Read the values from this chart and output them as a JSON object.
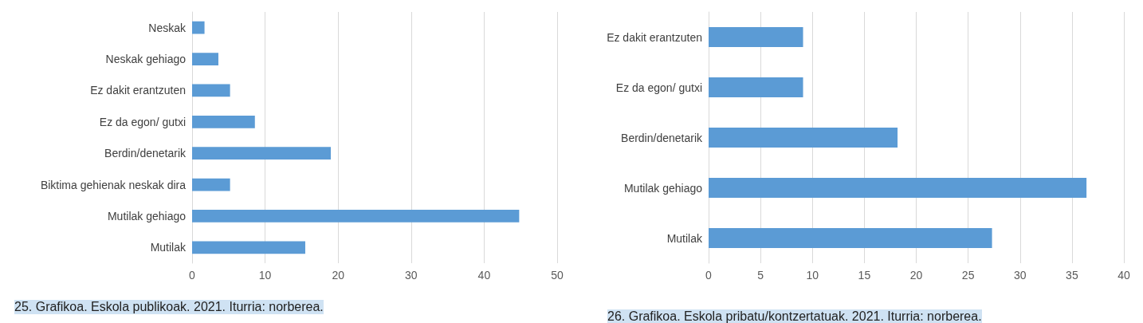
{
  "chart_data": [
    {
      "type": "bar",
      "orientation": "horizontal",
      "categories": [
        "Neskak",
        "Neskak gehiago",
        "Ez dakit erantzuten",
        "Ez da egon/ gutxi",
        "Berdin/denetarik",
        "Biktima gehienak neskak dira",
        "Mutilak gehiago",
        "Mutilak"
      ],
      "values": [
        1.7,
        3.6,
        5.2,
        8.6,
        19,
        5.2,
        44.8,
        15.5
      ],
      "color": "#5b9bd5",
      "xlim": [
        0,
        50
      ],
      "xticks": [
        0,
        10,
        20,
        30,
        40,
        50
      ],
      "grid": "x",
      "annotations": [
        "25. Grafikoa. Eskola publikoak. 2021. Iturria: norberea."
      ]
    },
    {
      "type": "bar",
      "orientation": "horizontal",
      "categories": [
        "Ez dakit erantzuten",
        "Ez da egon/ gutxi",
        "Berdin/denetarik",
        "Mutilak gehiago",
        "Mutilak"
      ],
      "values": [
        9.1,
        9.1,
        18.2,
        36.4,
        27.3
      ],
      "color": "#5b9bd5",
      "xlim": [
        0,
        40
      ],
      "xticks": [
        0,
        5,
        10,
        15,
        20,
        25,
        30,
        35,
        40
      ],
      "grid": "x",
      "annotations": [
        "26. Grafikoa. Eskola pribatu/kontzertatuak. 2021. Iturria: norberea."
      ]
    }
  ]
}
